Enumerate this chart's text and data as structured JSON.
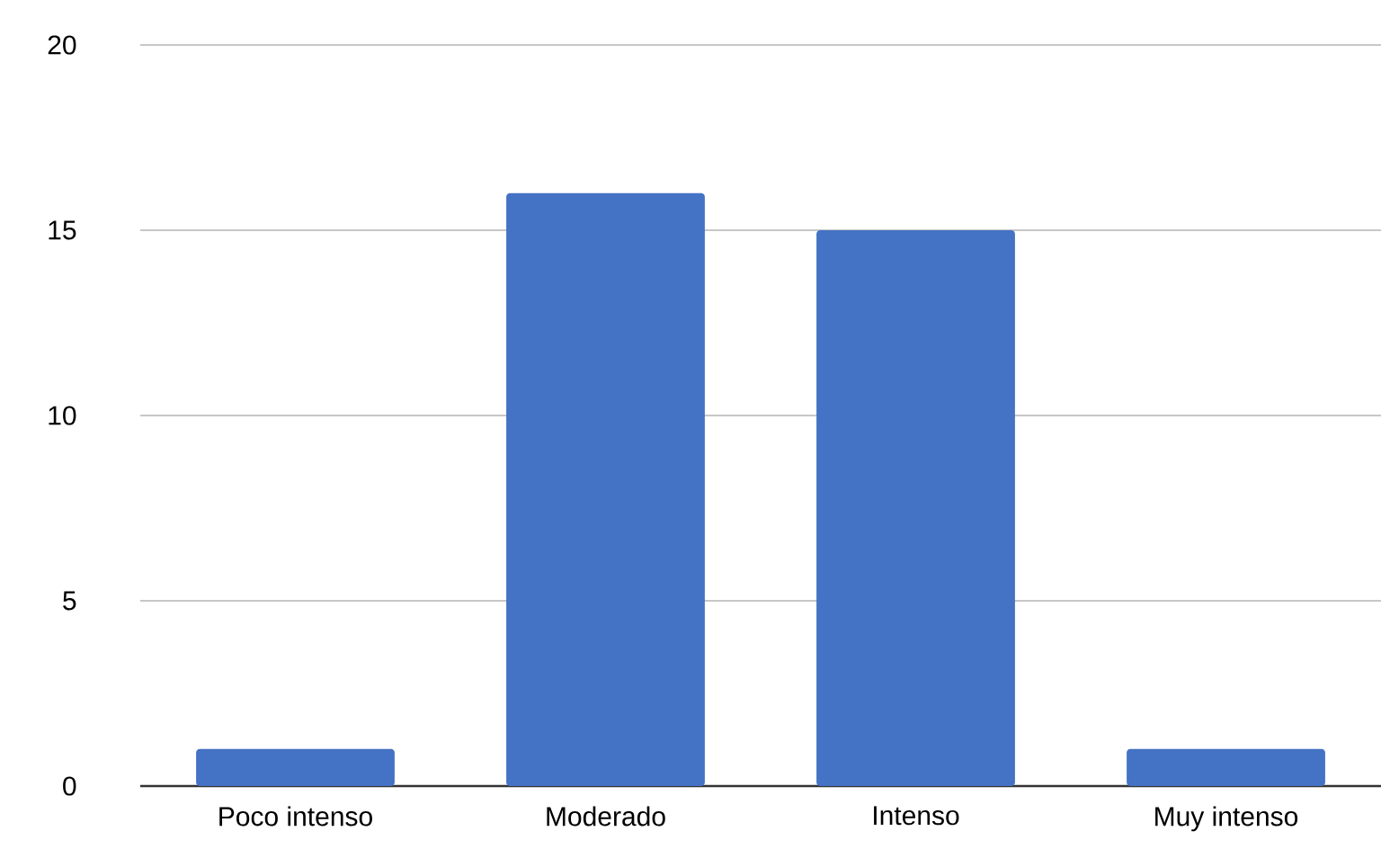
{
  "chart_data": {
    "type": "bar",
    "categories": [
      "Poco intenso",
      "Moderado",
      "Intenso",
      "Muy intenso"
    ],
    "values": [
      1,
      16,
      15,
      1
    ],
    "color": "#4472c4",
    "ylim": [
      0,
      20
    ],
    "yticks": [
      0,
      5,
      10,
      15,
      20
    ],
    "grid": "y"
  }
}
